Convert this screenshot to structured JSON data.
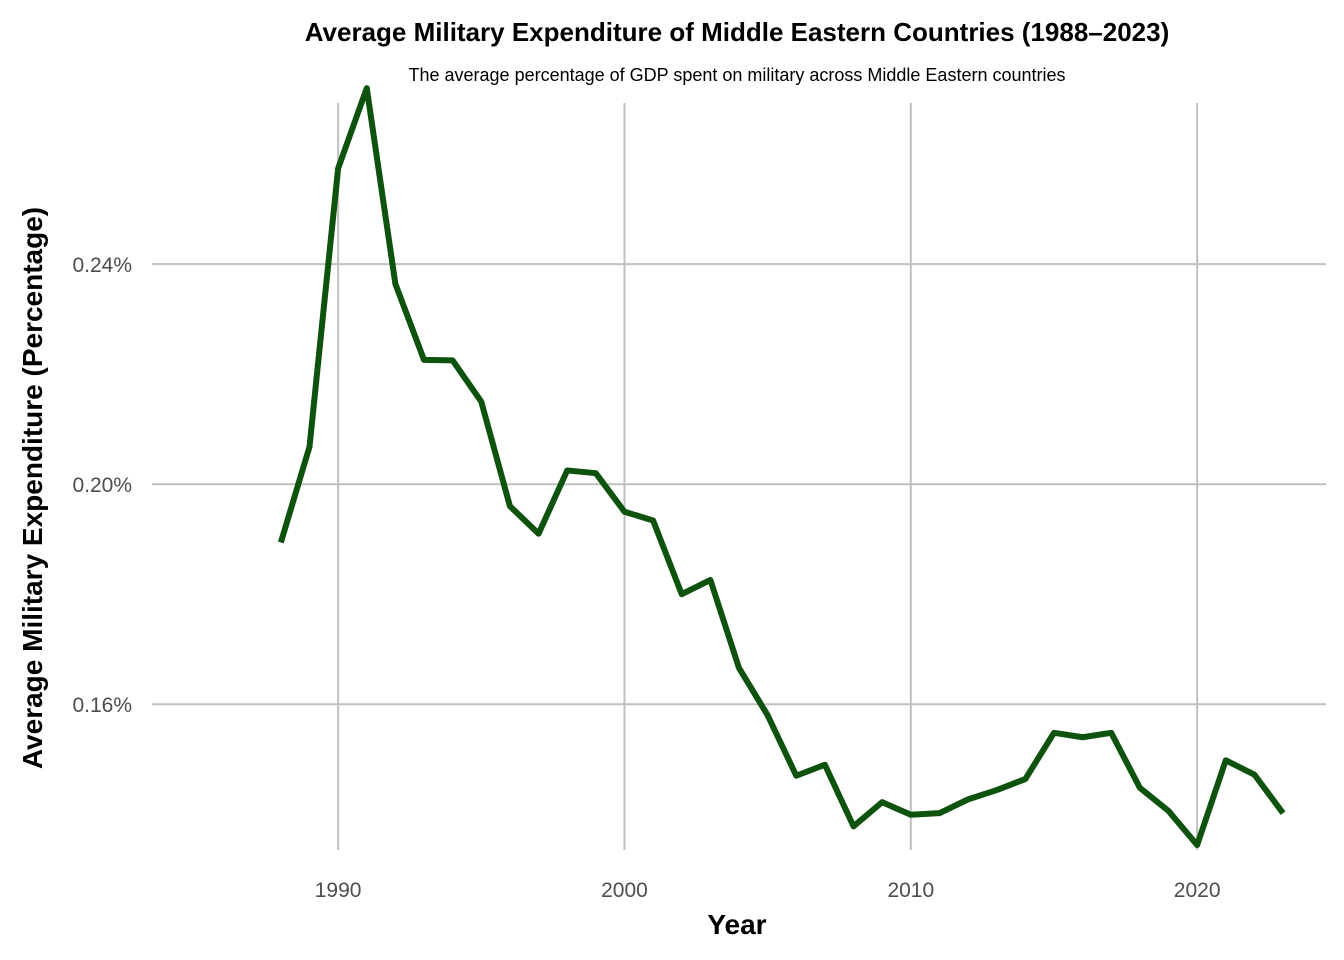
{
  "chart_data": {
    "type": "line",
    "title": "Average Military Expenditure of Middle Eastern Countries (1988–2023)",
    "subtitle": "The average percentage of GDP spent on military across Middle Eastern countries",
    "xlabel": "Year",
    "ylabel": "Average Military Expenditure (Percentage)",
    "xlim": [
      1983.5,
      2024.5
    ],
    "ylim": [
      0.1335,
      0.2693
    ],
    "x_ticks": [
      1990,
      2000,
      2010,
      2020
    ],
    "x_tick_labels": [
      "1990",
      "2000",
      "2010",
      "2020"
    ],
    "y_ticks": [
      0.16,
      0.2,
      0.24
    ],
    "y_tick_labels": [
      "0.16%",
      "0.20%",
      "0.24%"
    ],
    "grid": true,
    "legend": "none",
    "series_color": "#0d530d",
    "grid_color": "#c0c0c0",
    "series": [
      {
        "x": [
          1988,
          1989,
          1990,
          1991,
          1992,
          1993,
          1994,
          1995,
          1996,
          1997,
          1998,
          1999,
          2000,
          2001,
          2002,
          2003,
          2004,
          2005,
          2006,
          2007,
          2008,
          2009,
          2010,
          2011,
          2012,
          2013,
          2014,
          2015,
          2016,
          2017,
          2018,
          2019,
          2020,
          2021,
          2022,
          2023
        ],
        "values": [
          0.1894,
          0.2068,
          0.2574,
          0.272,
          0.2364,
          0.2226,
          0.2225,
          0.215,
          0.196,
          0.191,
          0.2025,
          0.202,
          0.195,
          0.1934,
          0.18,
          0.1826,
          0.1666,
          0.158,
          0.147,
          0.149,
          0.1378,
          0.1422,
          0.1399,
          0.1402,
          0.1427,
          0.1444,
          0.1464,
          0.1548,
          0.154,
          0.1548,
          0.1448,
          0.1406,
          0.1344,
          0.1498,
          0.1472,
          0.1402
        ]
      }
    ]
  }
}
